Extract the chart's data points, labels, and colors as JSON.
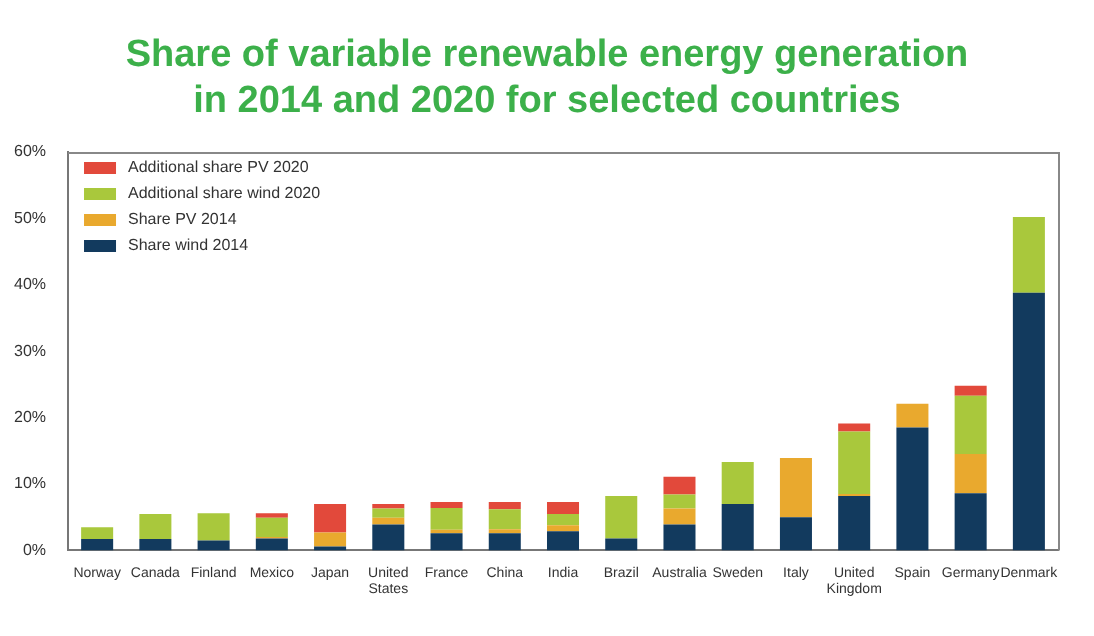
{
  "chart_data": {
    "type": "bar",
    "title": "Share of variable renewable energy generation in 2014 and 2020 for selected countries",
    "categories": [
      "Norway",
      "Canada",
      "Finland",
      "Mexico",
      "Japan",
      "United States",
      "France",
      "China",
      "India",
      "Brazil",
      "Australia",
      "Sweden",
      "Italy",
      "United Kingdom",
      "Spain",
      "Germany",
      "Denmark"
    ],
    "series": [
      {
        "name": "Share wind 2014",
        "color": "#123a5e",
        "values": [
          1.7,
          1.7,
          1.5,
          1.8,
          0.6,
          3.9,
          2.6,
          2.6,
          2.9,
          1.8,
          3.9,
          7.0,
          5.0,
          8.2,
          18.5,
          8.6,
          38.8
        ]
      },
      {
        "name": "Share PV 2014",
        "color": "#e9a92e",
        "values": [
          0,
          0,
          0,
          0.2,
          2.1,
          1.0,
          0.5,
          0.6,
          0.9,
          0,
          2.4,
          0,
          8.9,
          0.3,
          3.6,
          5.9,
          0
        ]
      },
      {
        "name": "Additional share wind 2020",
        "color": "#a9c83c",
        "values": [
          1.8,
          3.8,
          4.1,
          2.9,
          0,
          1.4,
          3.3,
          3.0,
          1.7,
          6.4,
          2.1,
          6.3,
          0,
          9.4,
          0,
          8.8,
          11.4
        ]
      },
      {
        "name": "Additional share PV 2020",
        "color": "#e2493b",
        "values": [
          0,
          0,
          0,
          0.7,
          4.3,
          0.7,
          0.9,
          1.1,
          1.8,
          0,
          2.7,
          0,
          0,
          1.2,
          0,
          1.5,
          0
        ]
      }
    ],
    "stacked": true,
    "ylim": [
      0,
      60
    ],
    "yticks": [
      {
        "value": 0,
        "label": "0%"
      },
      {
        "value": 10,
        "label": "10%"
      },
      {
        "value": 20,
        "label": "20%"
      },
      {
        "value": 30,
        "label": "30%"
      },
      {
        "value": 40,
        "label": "40%"
      },
      {
        "value": 50,
        "label": "50%"
      },
      {
        "value": 60,
        "label": "60%"
      }
    ],
    "grid": false,
    "legend": "top left"
  }
}
